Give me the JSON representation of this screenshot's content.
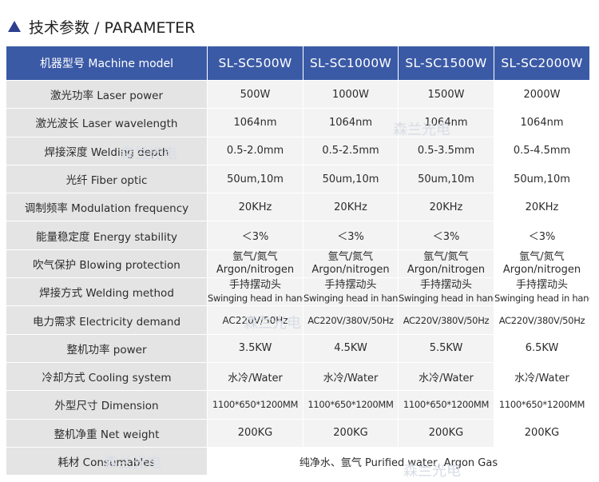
{
  "heading": "技术参数 / PARAMETER",
  "header": {
    "label": "机器型号  Machine model",
    "models": [
      "SL-SC500W",
      "SL-SC1000W",
      "SL-SC1500W",
      "SL-SC2000W"
    ]
  },
  "rows": [
    {
      "label": "激光功率  Laser power",
      "values": [
        "500W",
        "1000W",
        "1500W",
        "2000W"
      ]
    },
    {
      "label": "激光波长  Laser wavelength",
      "values": [
        "1064nm",
        "1064nm",
        "1064nm",
        "1064nm"
      ]
    },
    {
      "label": "焊接深度  Welding depth",
      "values": [
        "0.5-2.0mm",
        "0.5-2.5mm",
        "0.5-3.5mm",
        "0.5-4.5mm"
      ]
    },
    {
      "label": "光纤  Fiber optic",
      "values": [
        "50um,10m",
        "50um,10m",
        "50um,10m",
        "50um,10m"
      ]
    },
    {
      "label": "调制频率  Modulation frequency",
      "values": [
        "20KHz",
        "20KHz",
        "20KHz",
        "20KHz"
      ]
    },
    {
      "label": "能量稳定度  Energy stability",
      "values": [
        "＜3%",
        "＜3%",
        "＜3%",
        "＜3%"
      ]
    },
    {
      "label": "吹气保护  Blowing protection",
      "line1": "氩气/氮气",
      "line2": "Argon/nitrogen"
    },
    {
      "label": "焊接方式  Welding method",
      "line1": "手持摆动头",
      "line2": "Swinging head in hand"
    },
    {
      "label": "电力需求  Electricity demand",
      "values": [
        "AC220V/50Hz",
        "AC220V/380V/50Hz",
        "AC220V/380V/50Hz",
        "AC220V/380V/50Hz"
      ]
    },
    {
      "label": "整机功率    power",
      "values": [
        "3.5KW",
        "4.5KW",
        "5.5KW",
        "6.5KW"
      ]
    },
    {
      "label": "冷却方式  Cooling system",
      "values": [
        "水冷/Water",
        "水冷/Water",
        "水冷/Water",
        "水冷/Water"
      ]
    },
    {
      "label": "外型尺寸  Dimension",
      "values": [
        "1100*650*1200MM",
        "1100*650*1200MM",
        "1100*650*1200MM",
        "1100*650*1200MM"
      ]
    },
    {
      "label": "整机净重  Net weight",
      "values": [
        "200KG",
        "200KG",
        "200KG",
        "200KG"
      ]
    },
    {
      "label": "耗材  Consumables",
      "span_value": "纯净水、氩气    Purified water, Argon Gas"
    }
  ],
  "watermark": "森兰光电"
}
